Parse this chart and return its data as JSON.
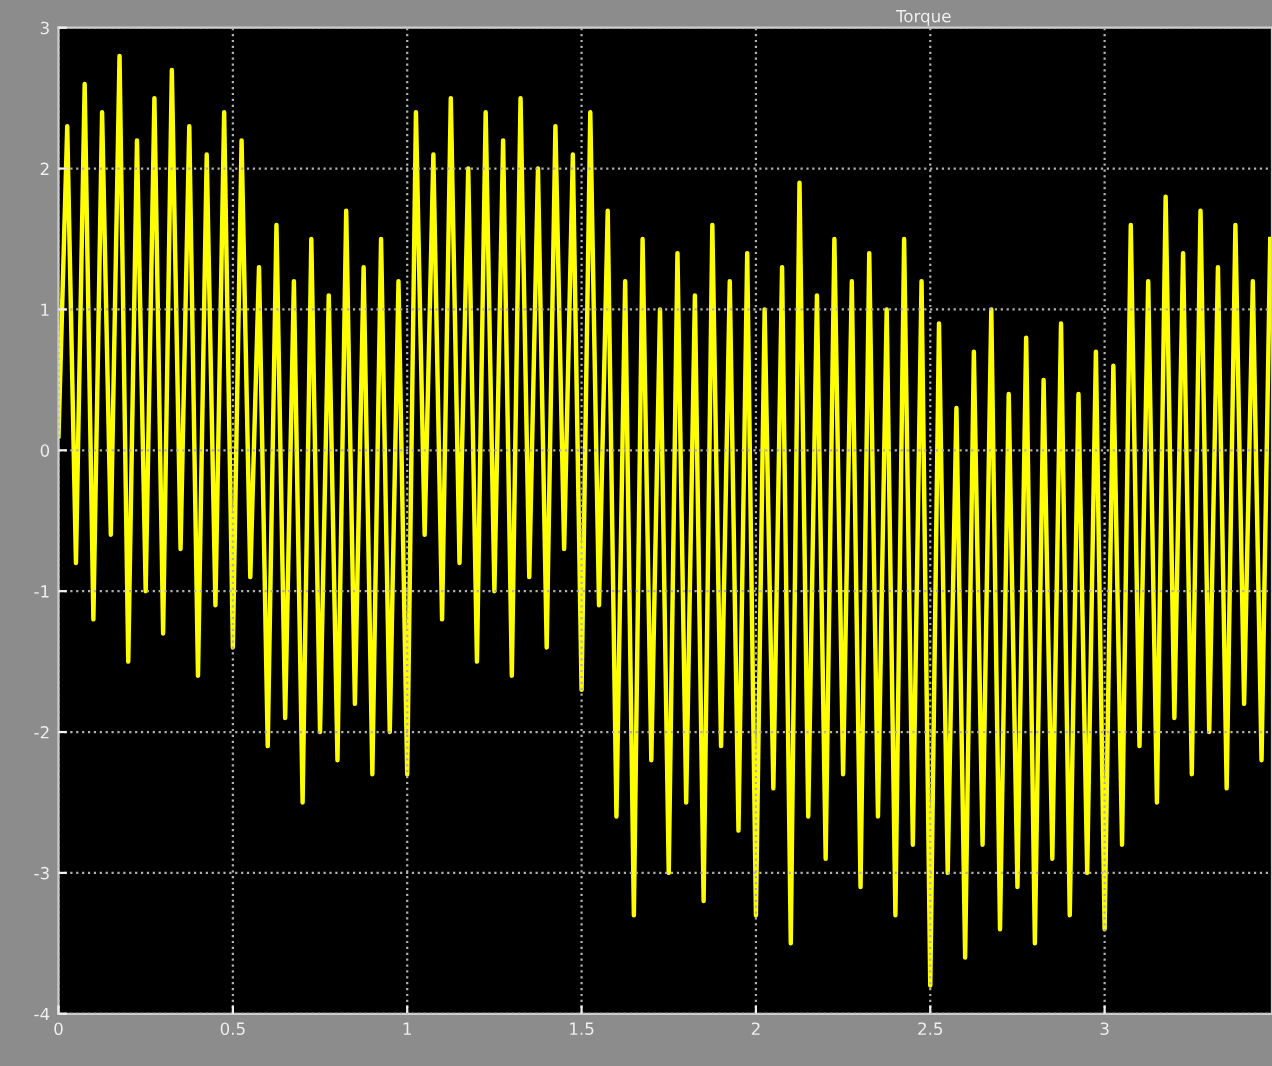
{
  "chart_data": {
    "type": "line",
    "title": "Torque",
    "xlim": [
      0,
      3.48
    ],
    "xticks": [
      0,
      0.5,
      1,
      1.5,
      2,
      2.5,
      3
    ],
    "ylim": [
      -4,
      3
    ],
    "yticks": [
      -4,
      -3,
      -2,
      -1,
      0,
      1,
      2,
      3
    ],
    "grid": true,
    "line_style": "solid",
    "series": [
      {
        "color": "#ffff00",
        "x": [
          0,
          0.025,
          0.05,
          0.075,
          0.1,
          0.125,
          0.15,
          0.175,
          0.2,
          0.225,
          0.25,
          0.275,
          0.3,
          0.325,
          0.35,
          0.375,
          0.4,
          0.425,
          0.45,
          0.475,
          0.5,
          0.525,
          0.55,
          0.575,
          0.6,
          0.625,
          0.65,
          0.675,
          0.7,
          0.725,
          0.75,
          0.775,
          0.8,
          0.825,
          0.85,
          0.875,
          0.9,
          0.925,
          0.95,
          0.975,
          1.0,
          1.025,
          1.05,
          1.075,
          1.1,
          1.125,
          1.15,
          1.175,
          1.2,
          1.225,
          1.25,
          1.275,
          1.3,
          1.325,
          1.35,
          1.375,
          1.4,
          1.425,
          1.45,
          1.475,
          1.5,
          1.525,
          1.55,
          1.575,
          1.6,
          1.625,
          1.65,
          1.675,
          1.7,
          1.725,
          1.75,
          1.775,
          1.8,
          1.825,
          1.85,
          1.875,
          1.9,
          1.925,
          1.95,
          1.975,
          2.0,
          2.025,
          2.05,
          2.075,
          2.1,
          2.125,
          2.15,
          2.175,
          2.2,
          2.225,
          2.25,
          2.275,
          2.3,
          2.325,
          2.35,
          2.375,
          2.4,
          2.425,
          2.45,
          2.475,
          2.5,
          2.525,
          2.55,
          2.575,
          2.6,
          2.625,
          2.65,
          2.675,
          2.7,
          2.725,
          2.75,
          2.775,
          2.8,
          2.825,
          2.85,
          2.875,
          2.9,
          2.925,
          2.95,
          2.975,
          3.0,
          3.025,
          3.05,
          3.075,
          3.1,
          3.125,
          3.15,
          3.175,
          3.2,
          3.225,
          3.25,
          3.275,
          3.3,
          3.325,
          3.35,
          3.375,
          3.4,
          3.425,
          3.45,
          3.475
        ],
        "values": [
          0.1,
          2.3,
          -0.8,
          2.6,
          -1.2,
          2.4,
          -0.6,
          2.8,
          -1.5,
          2.2,
          -1.0,
          2.5,
          -1.3,
          2.7,
          -0.7,
          2.3,
          -1.6,
          2.1,
          -1.1,
          2.4,
          -1.4,
          2.2,
          -0.9,
          1.3,
          -2.1,
          1.6,
          -1.9,
          1.2,
          -2.5,
          1.5,
          -2.0,
          1.1,
          -2.2,
          1.7,
          -1.8,
          1.3,
          -2.3,
          1.5,
          -2.0,
          1.2,
          -2.3,
          2.4,
          -0.6,
          2.1,
          -1.2,
          2.5,
          -0.8,
          2.0,
          -1.5,
          2.4,
          -1.0,
          2.2,
          -1.6,
          2.5,
          -0.9,
          2.0,
          -1.4,
          2.3,
          -0.7,
          2.1,
          -1.7,
          2.4,
          -1.1,
          1.7,
          -2.6,
          1.2,
          -3.3,
          1.5,
          -2.2,
          1.0,
          -3.0,
          1.4,
          -2.5,
          1.1,
          -3.2,
          1.6,
          -2.1,
          1.2,
          -2.7,
          1.4,
          -3.3,
          1.0,
          -2.4,
          1.3,
          -3.5,
          1.9,
          -2.6,
          1.1,
          -2.9,
          1.5,
          -2.3,
          1.2,
          -3.1,
          1.4,
          -2.6,
          1.0,
          -3.3,
          1.5,
          -2.8,
          1.2,
          -3.8,
          0.9,
          -3.0,
          0.3,
          -3.6,
          0.7,
          -2.8,
          1.0,
          -3.4,
          0.4,
          -3.1,
          0.8,
          -3.5,
          0.5,
          -2.9,
          0.9,
          -3.3,
          0.4,
          -3.0,
          0.7,
          -3.4,
          0.6,
          -2.8,
          1.6,
          -2.1,
          1.2,
          -2.5,
          1.8,
          -1.9,
          1.4,
          -2.3,
          1.7,
          -2.0,
          1.3,
          -2.4,
          1.6,
          -1.8,
          1.2,
          -2.2,
          1.5
        ]
      }
    ]
  }
}
